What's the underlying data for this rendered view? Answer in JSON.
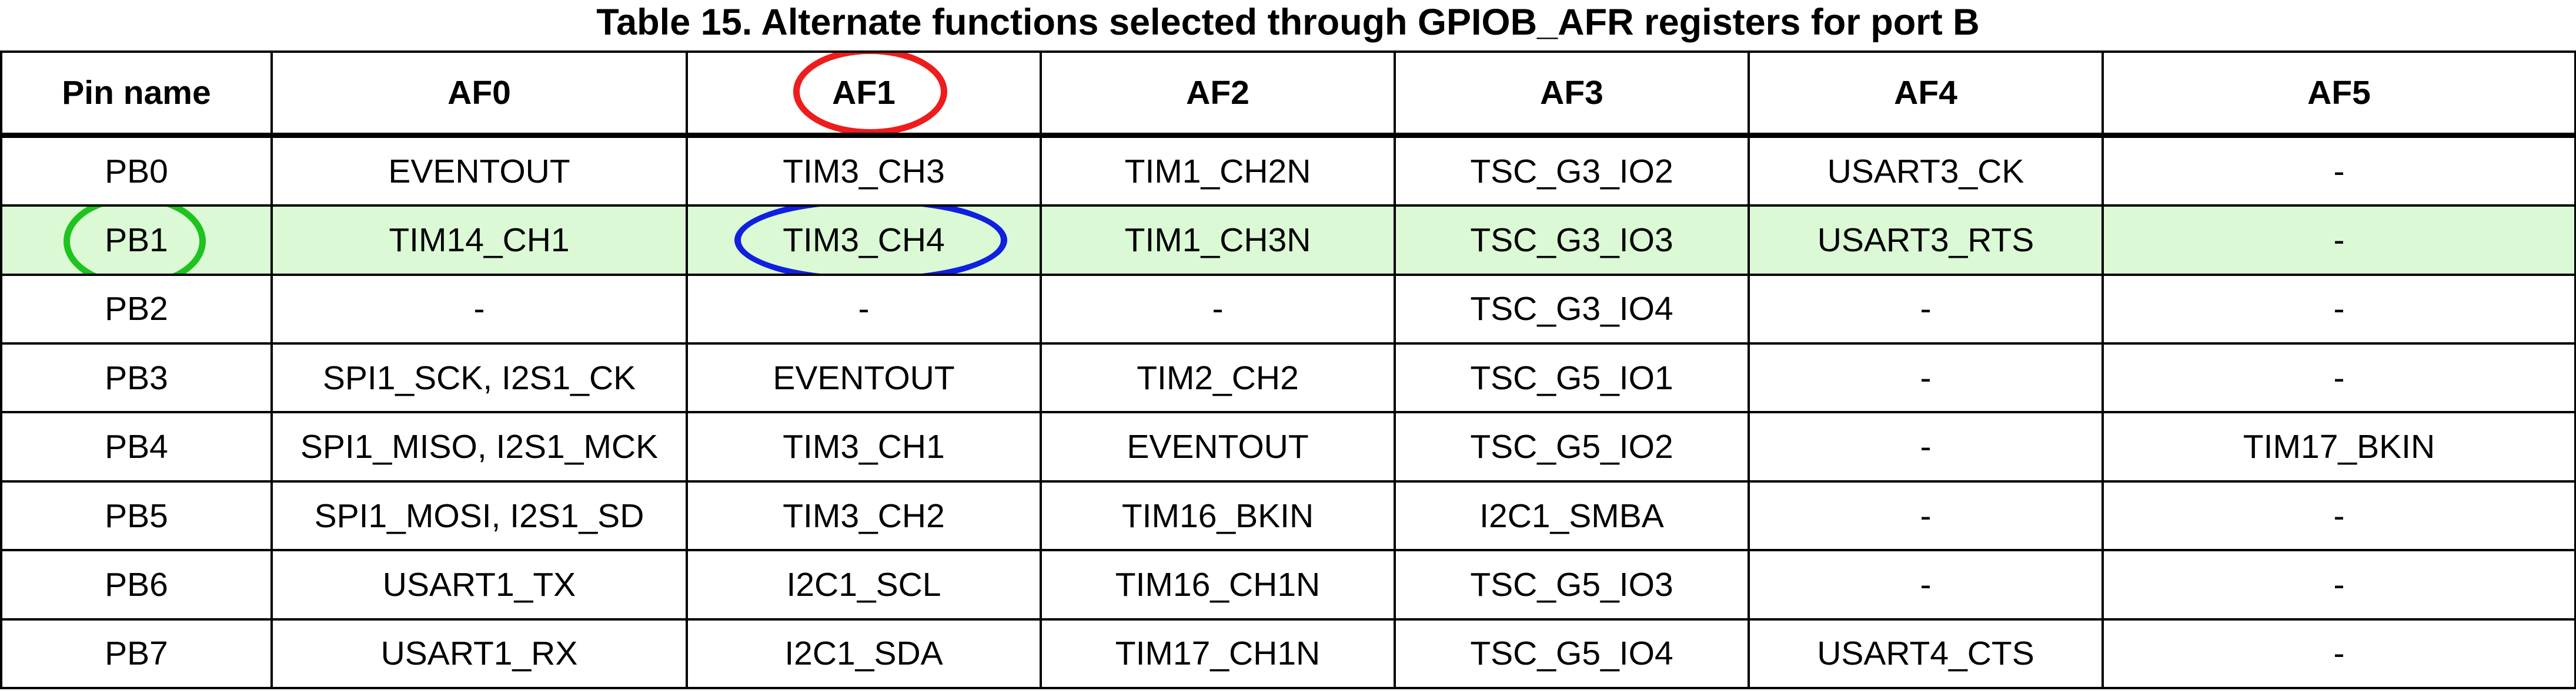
{
  "caption": "Table 15. Alternate functions selected through GPIOB_AFR registers for port B",
  "headers": [
    "Pin name",
    "AF0",
    "AF1",
    "AF2",
    "AF3",
    "AF4",
    "AF5"
  ],
  "rows": [
    [
      "PB0",
      "EVENTOUT",
      "TIM3_CH3",
      "TIM1_CH2N",
      "TSC_G3_IO2",
      "USART3_CK",
      "-"
    ],
    [
      "PB1",
      "TIM14_CH1",
      "TIM3_CH4",
      "TIM1_CH3N",
      "TSC_G3_IO3",
      "USART3_RTS",
      "-"
    ],
    [
      "PB2",
      "-",
      "-",
      "-",
      "TSC_G3_IO4",
      "-",
      "-"
    ],
    [
      "PB3",
      "SPI1_SCK, I2S1_CK",
      "EVENTOUT",
      "TIM2_CH2",
      "TSC_G5_IO1",
      "-",
      "-"
    ],
    [
      "PB4",
      "SPI1_MISO, I2S1_MCK",
      "TIM3_CH1",
      "EVENTOUT",
      "TSC_G5_IO2",
      "-",
      "TIM17_BKIN"
    ],
    [
      "PB5",
      "SPI1_MOSI, I2S1_SD",
      "TIM3_CH2",
      "TIM16_BKIN",
      "I2C1_SMBA",
      "-",
      "-"
    ],
    [
      "PB6",
      "USART1_TX",
      "I2C1_SCL",
      "TIM16_CH1N",
      "TSC_G5_IO3",
      "-",
      "-"
    ],
    [
      "PB7",
      "USART1_RX",
      "I2C1_SDA",
      "TIM17_CH1N",
      "TSC_G5_IO4",
      "USART4_CTS",
      "-"
    ]
  ],
  "highlight_row": "PB1",
  "highlight_color": "#dcf9d6",
  "annotation_colors": {
    "af1_header_circle": "#ee1c1c",
    "pb1_pin_circle": "#1ec31e",
    "pb1_af1_value_circle": "#1020e0"
  }
}
